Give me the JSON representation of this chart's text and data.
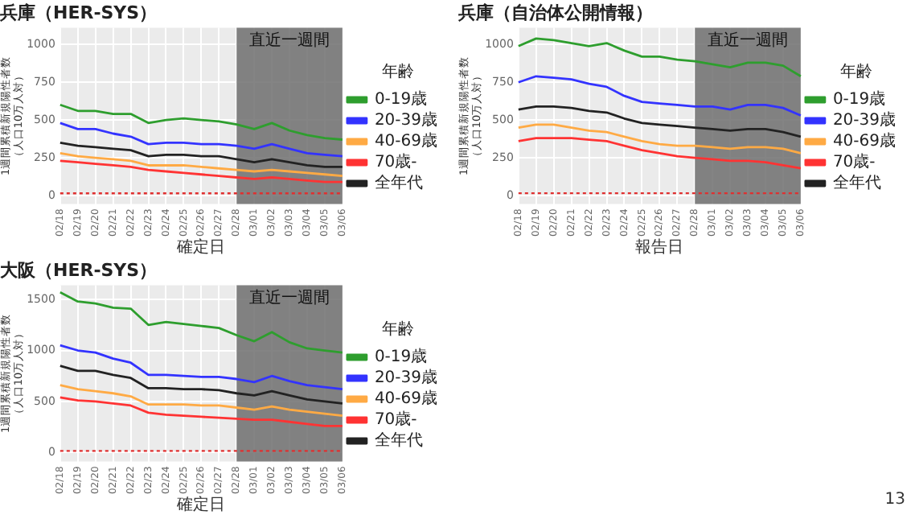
{
  "chart_data": [
    {
      "type": "line",
      "title": "兵庫（HER-SYS）",
      "xlabel": "確定日",
      "ylabel": "1週間累積新規陽性者数（人口10万人対）",
      "legend_title": "年齢",
      "legend": "right",
      "grid": true,
      "marker": "none",
      "line_style": "solid",
      "categories": [
        "02/18",
        "02/19",
        "02/20",
        "02/21",
        "02/22",
        "02/23",
        "02/24",
        "02/25",
        "02/26",
        "02/27",
        "02/28",
        "03/01",
        "03/02",
        "03/03",
        "03/04",
        "03/05",
        "03/06"
      ],
      "ylim": [
        -55,
        1110
      ],
      "yticks": [
        0,
        250,
        500,
        750,
        1000
      ],
      "series": [
        {
          "name": "0-19歳",
          "color": "#2e9e2e",
          "values": [
            600,
            560,
            560,
            540,
            540,
            480,
            500,
            510,
            500,
            490,
            470,
            440,
            480,
            430,
            400,
            380,
            370
          ]
        },
        {
          "name": "20-39歳",
          "color": "#3333ff",
          "values": [
            480,
            440,
            440,
            410,
            390,
            340,
            350,
            350,
            340,
            340,
            330,
            310,
            340,
            310,
            280,
            270,
            260
          ]
        },
        {
          "name": "40-69歳",
          "color": "#ffaa44",
          "values": [
            280,
            260,
            250,
            240,
            230,
            200,
            200,
            200,
            190,
            180,
            170,
            160,
            170,
            160,
            150,
            140,
            130
          ]
        },
        {
          "name": "70歳-",
          "color": "#ff3333",
          "values": [
            230,
            220,
            210,
            200,
            190,
            170,
            160,
            150,
            140,
            130,
            120,
            110,
            120,
            110,
            100,
            90,
            90
          ]
        },
        {
          "name": "全年代",
          "color": "#222222",
          "values": [
            350,
            330,
            320,
            310,
            300,
            260,
            270,
            270,
            260,
            260,
            240,
            220,
            240,
            220,
            200,
            190,
            190
          ]
        }
      ],
      "ref_lines": [
        {
          "axis": "y",
          "value": 15,
          "color": "#e03030",
          "line_style": "dotted"
        }
      ],
      "bands": [
        {
          "axis": "x",
          "from": "02/28",
          "to": "03/06",
          "label": "直近一週間",
          "color": "#6e6e6e"
        }
      ]
    },
    {
      "type": "line",
      "title": "兵庫（自治体公開情報）",
      "xlabel": "報告日",
      "ylabel": "1週間累積新規陽性者数（人口10万人対）",
      "legend_title": "年齢",
      "legend": "right",
      "grid": true,
      "marker": "none",
      "line_style": "solid",
      "categories": [
        "02/18",
        "02/19",
        "02/20",
        "02/21",
        "02/22",
        "02/23",
        "02/24",
        "02/25",
        "02/26",
        "02/27",
        "02/28",
        "03/01",
        "03/02",
        "03/03",
        "03/04",
        "03/05",
        "03/06"
      ],
      "ylim": [
        -56,
        1112
      ],
      "yticks": [
        0,
        250,
        500,
        750,
        1000
      ],
      "series": [
        {
          "name": "0-19歳",
          "color": "#2e9e2e",
          "values": [
            990,
            1040,
            1030,
            1010,
            990,
            1010,
            960,
            920,
            920,
            900,
            890,
            870,
            850,
            880,
            880,
            860,
            790
          ]
        },
        {
          "name": "20-39歳",
          "color": "#3333ff",
          "values": [
            750,
            790,
            780,
            770,
            740,
            720,
            660,
            620,
            610,
            600,
            590,
            590,
            570,
            600,
            600,
            580,
            530
          ]
        },
        {
          "name": "40-69歳",
          "color": "#ffaa44",
          "values": [
            450,
            470,
            470,
            450,
            430,
            420,
            390,
            360,
            340,
            330,
            330,
            320,
            310,
            320,
            320,
            310,
            280
          ]
        },
        {
          "name": "70歳-",
          "color": "#ff3333",
          "values": [
            360,
            380,
            380,
            380,
            370,
            360,
            330,
            300,
            280,
            260,
            250,
            240,
            230,
            230,
            220,
            200,
            180
          ]
        },
        {
          "name": "全年代",
          "color": "#222222",
          "values": [
            570,
            590,
            590,
            580,
            560,
            550,
            510,
            480,
            470,
            460,
            450,
            440,
            430,
            440,
            440,
            420,
            390
          ]
        }
      ],
      "ref_lines": [
        {
          "axis": "y",
          "value": 15,
          "color": "#e03030",
          "line_style": "dotted"
        }
      ],
      "bands": [
        {
          "axis": "x",
          "from": "02/28",
          "to": "03/06",
          "label": "直近一週間",
          "color": "#6e6e6e"
        }
      ]
    },
    {
      "type": "line",
      "title": "大阪（HER-SYS）",
      "xlabel": "確定日",
      "ylabel": "1週間累積新規陽性者数（人口10万人対）",
      "legend_title": "年齢",
      "legend": "right",
      "grid": true,
      "marker": "none",
      "line_style": "solid",
      "categories": [
        "02/18",
        "02/19",
        "02/20",
        "02/21",
        "02/22",
        "02/23",
        "02/24",
        "02/25",
        "02/26",
        "02/27",
        "02/28",
        "03/01",
        "03/02",
        "03/03",
        "03/04",
        "03/05",
        "03/06"
      ],
      "ylim": [
        -88,
        1640
      ],
      "yticks": [
        0,
        500,
        1000,
        1500
      ],
      "series": [
        {
          "name": "0-19歳",
          "color": "#2e9e2e",
          "values": [
            1570,
            1480,
            1460,
            1420,
            1410,
            1250,
            1280,
            1260,
            1240,
            1220,
            1150,
            1090,
            1180,
            1080,
            1020,
            1000,
            980
          ]
        },
        {
          "name": "20-39歳",
          "color": "#3333ff",
          "values": [
            1050,
            1000,
            980,
            920,
            880,
            760,
            760,
            750,
            740,
            740,
            720,
            690,
            750,
            700,
            660,
            640,
            620
          ]
        },
        {
          "name": "40-69歳",
          "color": "#ffaa44",
          "values": [
            660,
            620,
            600,
            580,
            550,
            470,
            470,
            470,
            460,
            460,
            440,
            420,
            450,
            420,
            400,
            380,
            360
          ]
        },
        {
          "name": "70歳-",
          "color": "#ff3333",
          "values": [
            540,
            510,
            500,
            480,
            460,
            390,
            370,
            360,
            350,
            340,
            330,
            320,
            320,
            300,
            280,
            260,
            260
          ]
        },
        {
          "name": "全年代",
          "color": "#222222",
          "values": [
            850,
            800,
            800,
            760,
            730,
            630,
            630,
            620,
            620,
            610,
            580,
            560,
            600,
            560,
            520,
            500,
            480
          ]
        }
      ],
      "ref_lines": [
        {
          "axis": "y",
          "value": 15,
          "color": "#e03030",
          "line_style": "dotted"
        }
      ],
      "bands": [
        {
          "axis": "x",
          "from": "02/28",
          "to": "03/06",
          "label": "直近一週間",
          "color": "#6e6e6e"
        }
      ],
      "annotations": [
        "13"
      ]
    }
  ]
}
